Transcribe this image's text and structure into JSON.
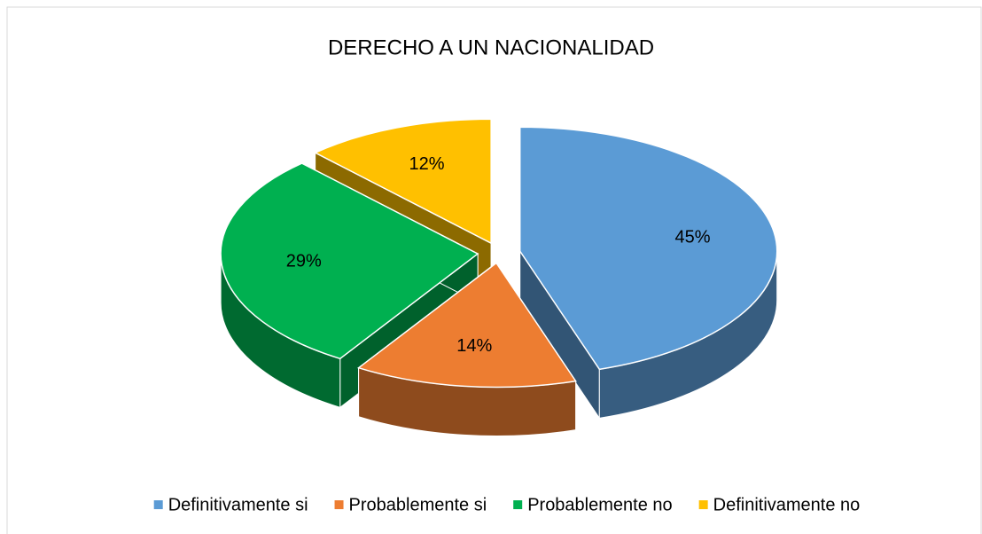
{
  "chart_data": {
    "type": "pie",
    "title": "DERECHO A UN NACIONALIDAD",
    "categories": [
      "Definitivamente si",
      "Probablemente si",
      "Probablemente no",
      "Definitivamente no"
    ],
    "values": [
      45,
      14,
      29,
      12
    ],
    "value_labels": [
      "45%",
      "14%",
      "29%",
      "12%"
    ],
    "colors": [
      "#5b9bd5",
      "#ed7d31",
      "#00b050",
      "#ffc000"
    ],
    "legend": "bottom"
  }
}
